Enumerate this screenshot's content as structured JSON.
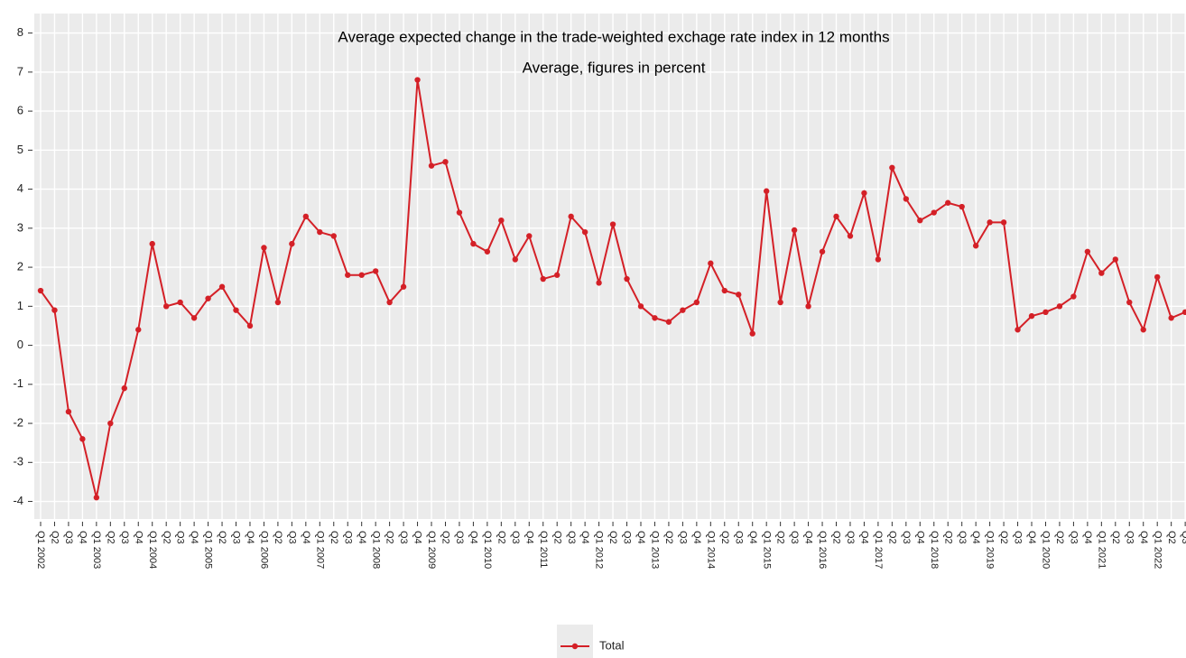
{
  "chart_data": {
    "type": "line",
    "title": "Average expected change in the trade-weighted exchage rate index in 12 months",
    "subtitle": "Average, figures in percent",
    "categories": [
      "Q1 2002",
      "Q2",
      "Q3",
      "Q4",
      "Q1 2003",
      "Q2",
      "Q3",
      "Q4",
      "Q1 2004",
      "Q2",
      "Q3",
      "Q4",
      "Q1 2005",
      "Q2",
      "Q3",
      "Q4",
      "Q1 2006",
      "Q2",
      "Q3",
      "Q4",
      "Q1 2007",
      "Q2",
      "Q3",
      "Q4",
      "Q1 2008",
      "Q2",
      "Q3",
      "Q4",
      "Q1 2009",
      "Q2",
      "Q3",
      "Q4",
      "Q1 2010",
      "Q2",
      "Q3",
      "Q4",
      "Q1 2011",
      "Q2",
      "Q3",
      "Q4",
      "Q1 2012",
      "Q2",
      "Q3",
      "Q4",
      "Q1 2013",
      "Q2",
      "Q3",
      "Q4",
      "Q1 2014",
      "Q2",
      "Q3",
      "Q4",
      "Q1 2015",
      "Q2",
      "Q3",
      "Q4",
      "Q1 2016",
      "Q2",
      "Q3",
      "Q4",
      "Q1 2017",
      "Q2",
      "Q3",
      "Q4",
      "Q1 2018",
      "Q2",
      "Q3",
      "Q4",
      "Q1 2019",
      "Q2",
      "Q3",
      "Q4",
      "Q1 2020",
      "Q2",
      "Q3",
      "Q4",
      "Q1 2021",
      "Q2",
      "Q3",
      "Q4",
      "Q1 2022",
      "Q2",
      "Q3"
    ],
    "series": [
      {
        "name": "Total",
        "color": "#d42027",
        "values": [
          1.4,
          0.9,
          -1.7,
          -2.4,
          -3.9,
          -2.0,
          -1.1,
          0.4,
          2.6,
          1.0,
          1.1,
          0.7,
          1.2,
          1.5,
          0.9,
          0.5,
          2.5,
          1.1,
          2.6,
          3.3,
          2.9,
          2.8,
          1.8,
          1.8,
          1.9,
          1.1,
          1.5,
          6.8,
          4.6,
          4.7,
          3.4,
          2.6,
          2.4,
          3.2,
          2.2,
          2.8,
          1.7,
          1.8,
          3.3,
          2.9,
          1.6,
          3.1,
          1.7,
          1.0,
          0.7,
          0.6,
          0.9,
          1.1,
          2.1,
          1.4,
          1.3,
          0.3,
          3.95,
          1.1,
          2.95,
          1.0,
          2.4,
          3.3,
          2.8,
          3.9,
          2.2,
          4.55,
          3.75,
          3.2,
          3.4,
          3.65,
          3.55,
          2.55,
          3.15,
          3.15,
          0.4,
          0.75,
          0.85,
          1.0,
          1.25,
          2.4,
          1.85,
          2.2,
          1.1,
          0.4,
          1.75,
          0.7,
          0.85
        ]
      }
    ],
    "ylim": [
      -4.45,
      8.5
    ],
    "yticks": [
      -4,
      -3,
      -2,
      -1,
      0,
      1,
      2,
      3,
      4,
      5,
      6,
      7,
      8
    ],
    "grid": true,
    "legend": "bottom"
  }
}
